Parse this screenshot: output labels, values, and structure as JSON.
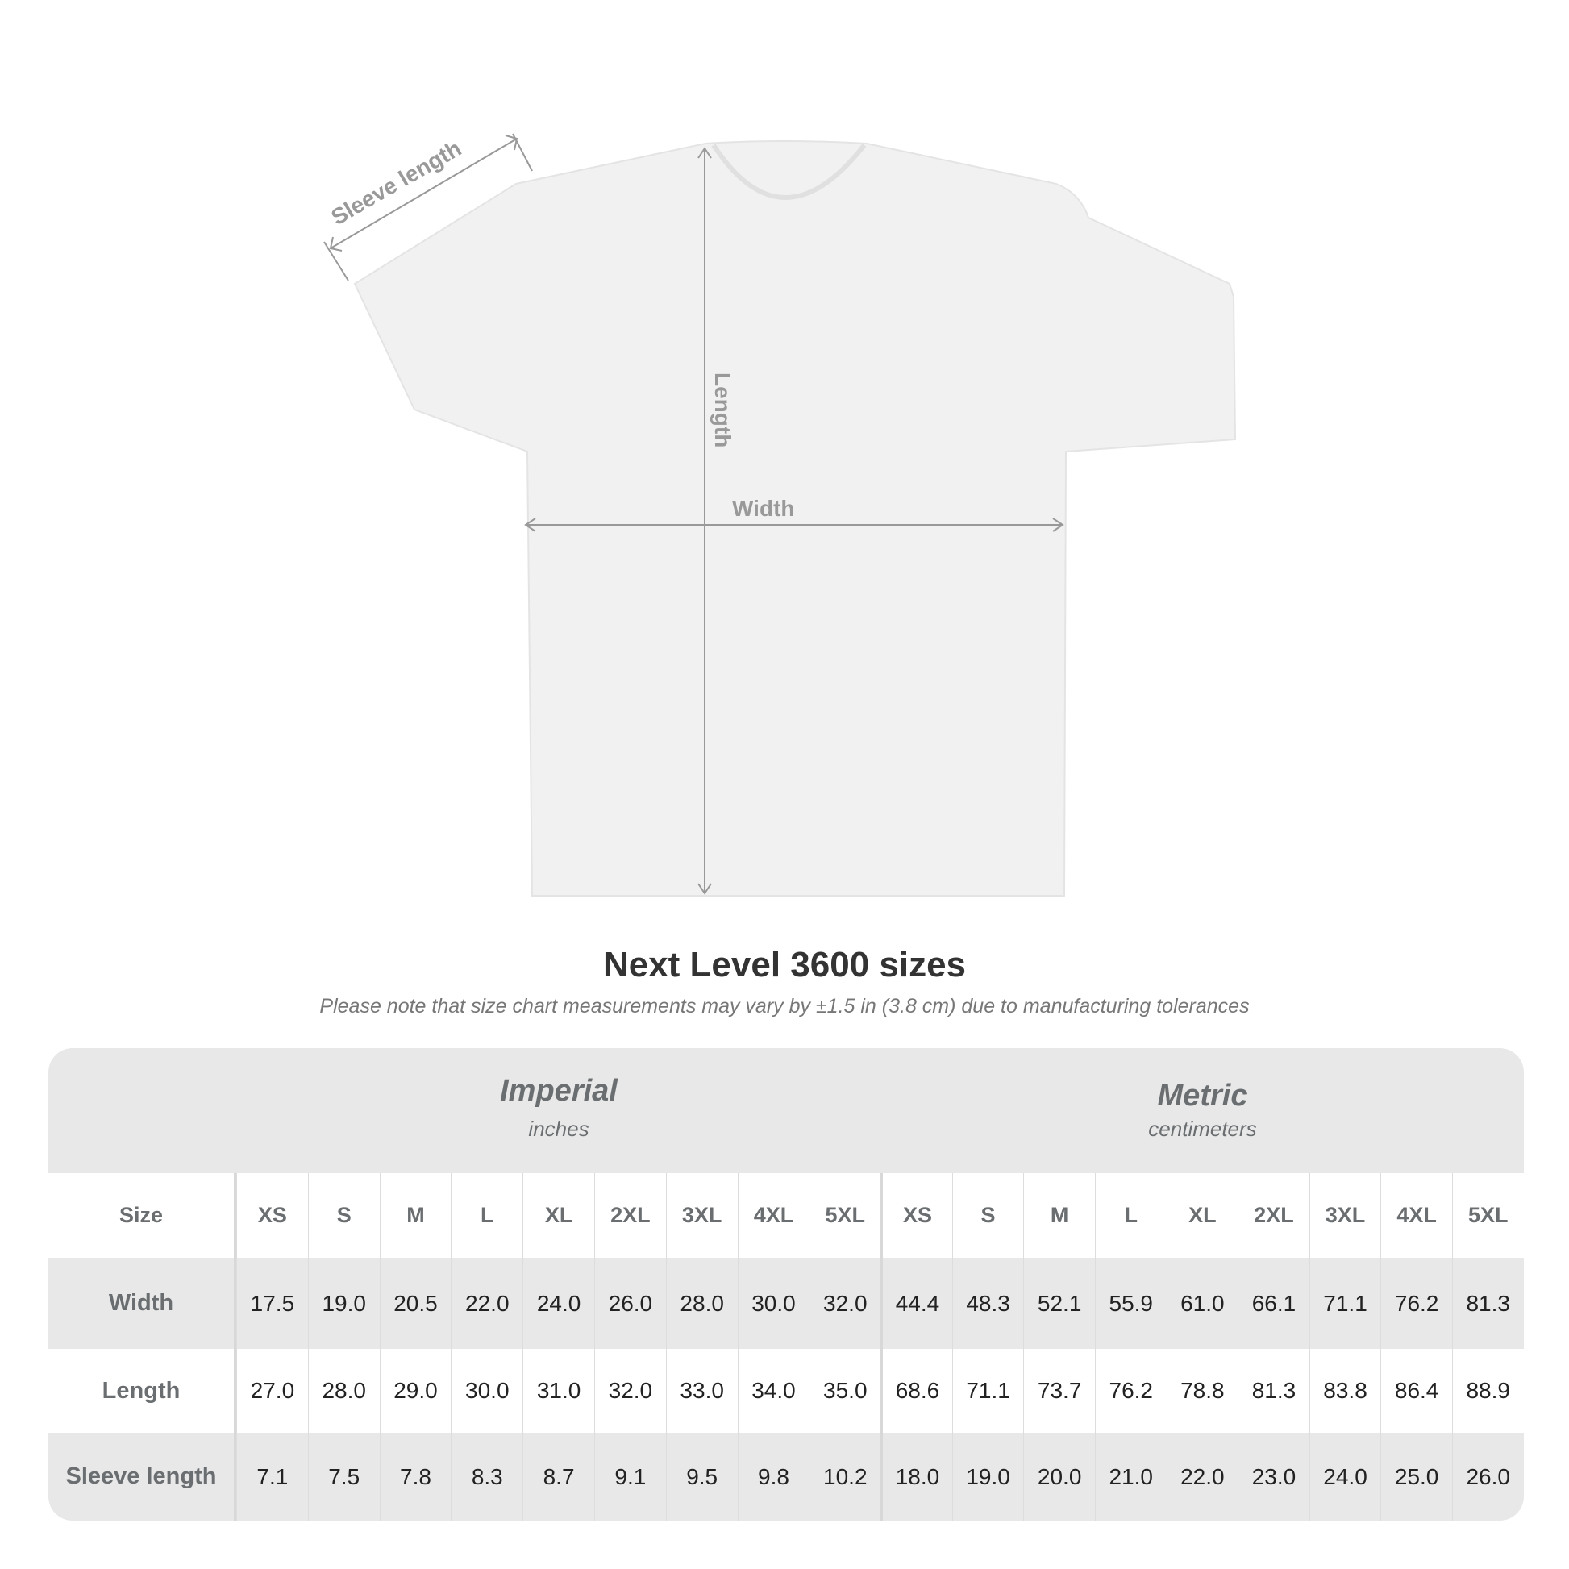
{
  "diagram": {
    "sleeve_label": "Sleeve length",
    "length_label": "Length",
    "width_label": "Width"
  },
  "title": "Next Level 3600 sizes",
  "note": "Please note that size chart measurements may vary by ±1.5 in (3.8 cm) due to manufacturing tolerances",
  "table": {
    "imperial": {
      "name": "Imperial",
      "unit": "inches"
    },
    "metric": {
      "name": "Metric",
      "unit": "centimeters"
    },
    "header_label": "Size",
    "sizes": [
      "XS",
      "S",
      "M",
      "L",
      "XL",
      "2XL",
      "3XL",
      "4XL",
      "5XL"
    ],
    "rows": [
      {
        "label": "Width",
        "imperial": [
          "17.5",
          "19.0",
          "20.5",
          "22.0",
          "24.0",
          "26.0",
          "28.0",
          "30.0",
          "32.0"
        ],
        "metric": [
          "44.4",
          "48.3",
          "52.1",
          "55.9",
          "61.0",
          "66.1",
          "71.1",
          "76.2",
          "81.3"
        ]
      },
      {
        "label": "Length",
        "imperial": [
          "27.0",
          "28.0",
          "29.0",
          "30.0",
          "31.0",
          "32.0",
          "33.0",
          "34.0",
          "35.0"
        ],
        "metric": [
          "68.6",
          "71.1",
          "73.7",
          "76.2",
          "78.8",
          "81.3",
          "83.8",
          "86.4",
          "88.9"
        ]
      },
      {
        "label": "Sleeve length",
        "imperial": [
          "7.1",
          "7.5",
          "7.8",
          "8.3",
          "8.7",
          "9.1",
          "9.5",
          "9.8",
          "10.2"
        ],
        "metric": [
          "18.0",
          "19.0",
          "20.0",
          "21.0",
          "22.0",
          "23.0",
          "24.0",
          "25.0",
          "26.0"
        ]
      }
    ]
  },
  "colors": {
    "header_text": "#6a6e70",
    "band": "#e8e8e8",
    "arrow": "#999999"
  }
}
